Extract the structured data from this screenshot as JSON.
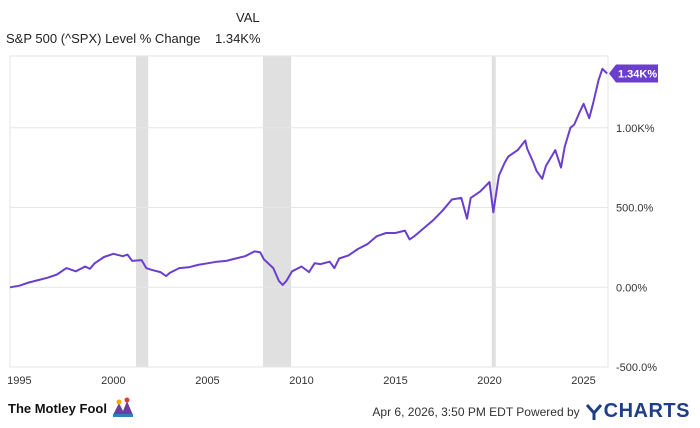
{
  "legend": {
    "column_header": "VAL",
    "series_name": "S&P 500 (^SPX) Level % Change",
    "series_value": "1.34K%"
  },
  "chart_data": {
    "type": "line",
    "title": "",
    "xlabel": "",
    "ylabel": "",
    "xlim": [
      1994.5,
      2026.3
    ],
    "ylim": [
      -500,
      1450
    ],
    "x_ticks": [
      1995,
      2000,
      2005,
      2010,
      2015,
      2020,
      2025
    ],
    "x_tick_labels": [
      "1995",
      "2000",
      "2005",
      "2010",
      "2015",
      "2020",
      "2025"
    ],
    "y_ticks": [
      -500,
      0,
      500,
      1000
    ],
    "y_tick_labels": [
      "-500.0%",
      "0.00%",
      "500.0%",
      "1.00K%"
    ],
    "grid": "horizontal",
    "recession_bands": [
      [
        2001.2,
        2001.85
      ],
      [
        2007.95,
        2009.45
      ],
      [
        2020.12,
        2020.33
      ]
    ],
    "end_label": "1.34K%",
    "colors": {
      "line": "#6a3fcf",
      "band": "#e0e0e0",
      "grid": "#e6e6e6",
      "badge": "#6a3fcf"
    },
    "series": [
      {
        "name": "S&P 500 (^SPX) Level % Change",
        "x": [
          1994.5,
          1995,
          1995.5,
          1996,
          1996.5,
          1997,
          1997.5,
          1998,
          1998.5,
          1998.75,
          1999,
          1999.5,
          2000,
          2000.5,
          2000.75,
          2001,
          2001.5,
          2001.75,
          2002,
          2002.5,
          2002.8,
          2003,
          2003.5,
          2004,
          2004.5,
          2005,
          2005.5,
          2006,
          2006.5,
          2007,
          2007.5,
          2007.8,
          2008,
          2008.5,
          2008.8,
          2009,
          2009.2,
          2009.5,
          2010,
          2010.4,
          2010.7,
          2011,
          2011.5,
          2011.75,
          2012,
          2012.5,
          2013,
          2013.5,
          2014,
          2014.5,
          2015,
          2015.5,
          2015.75,
          2016,
          2016.5,
          2017,
          2017.5,
          2018,
          2018.5,
          2018.8,
          2019,
          2019.5,
          2020,
          2020.2,
          2020.5,
          2020.8,
          2021,
          2021.5,
          2021.9,
          2022,
          2022.3,
          2022.5,
          2022.8,
          2023,
          2023.5,
          2023.8,
          2024,
          2024.3,
          2024.5,
          2024.8,
          2025,
          2025.3,
          2025.5,
          2025.8,
          2026,
          2026.25
        ],
        "y": [
          0,
          10,
          30,
          45,
          60,
          80,
          120,
          100,
          130,
          115,
          150,
          190,
          210,
          195,
          205,
          165,
          170,
          120,
          110,
          95,
          70,
          90,
          120,
          125,
          140,
          150,
          160,
          165,
          180,
          195,
          225,
          220,
          175,
          120,
          40,
          15,
          40,
          100,
          130,
          95,
          150,
          145,
          160,
          120,
          180,
          200,
          240,
          270,
          320,
          340,
          340,
          355,
          300,
          320,
          370,
          420,
          480,
          550,
          560,
          430,
          560,
          600,
          660,
          470,
          700,
          780,
          820,
          860,
          920,
          870,
          790,
          730,
          680,
          760,
          860,
          750,
          880,
          1000,
          1020,
          1100,
          1150,
          1060,
          1150,
          1300,
          1370,
          1340
        ]
      }
    ]
  },
  "footer": {
    "brand": "The Motley Fool",
    "timestamp_text": "Apr 6, 2026, 3:50 PM EDT Powered by",
    "ycharts": "CHARTS"
  }
}
